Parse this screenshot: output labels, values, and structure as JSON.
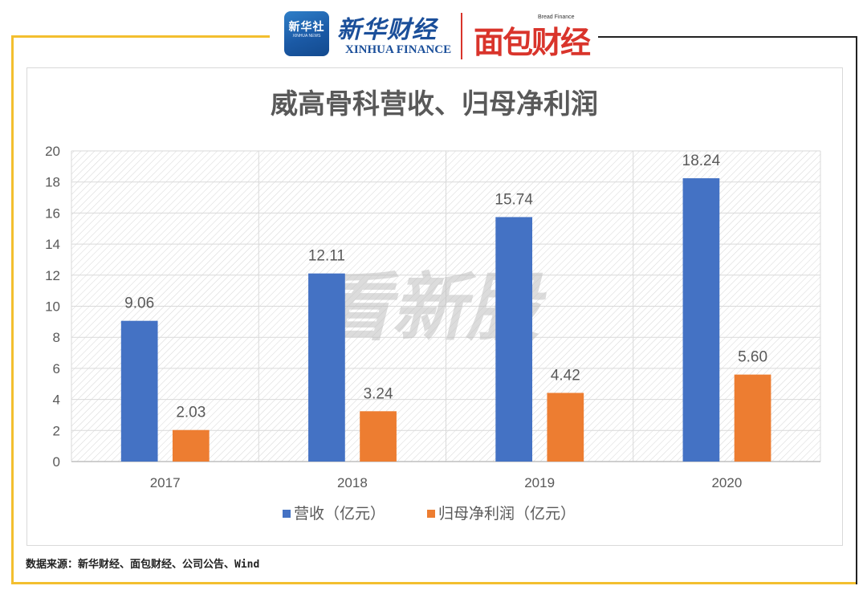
{
  "header": {
    "xinhua_badge": "新华社",
    "xinhua_badge_sub": "XINHUA NEWS",
    "xinhua_finance_cn": "新华财经",
    "xinhua_finance_en": "XINHUA FINANCE",
    "bread_finance_en": "Bread Finance",
    "bread_finance_cn": "面包财经"
  },
  "watermark": "看新股",
  "source_note": "数据来源：新华财经、面包财经、公司公告、Wind",
  "colors": {
    "revenue": "#4472c4",
    "net_profit": "#ed7d31",
    "frame_accent": "#f3bf2f"
  },
  "chart_data": {
    "type": "bar",
    "title": "威高骨科营收、归母净利润",
    "categories": [
      "2017",
      "2018",
      "2019",
      "2020"
    ],
    "series": [
      {
        "name": "营收（亿元）",
        "values": [
          9.06,
          12.11,
          15.74,
          18.24
        ],
        "labels": [
          "9.06",
          "12.11",
          "15.74",
          "18.24"
        ]
      },
      {
        "name": "归母净利润（亿元）",
        "values": [
          2.03,
          3.24,
          4.42,
          5.6
        ],
        "labels": [
          "2.03",
          "3.24",
          "4.42",
          "5.60"
        ]
      }
    ],
    "ylim": [
      0,
      20
    ],
    "yticks": [
      "0",
      "2",
      "4",
      "6",
      "8",
      "10",
      "12",
      "14",
      "16",
      "18",
      "20"
    ],
    "grid": true,
    "legend_position": "bottom"
  }
}
